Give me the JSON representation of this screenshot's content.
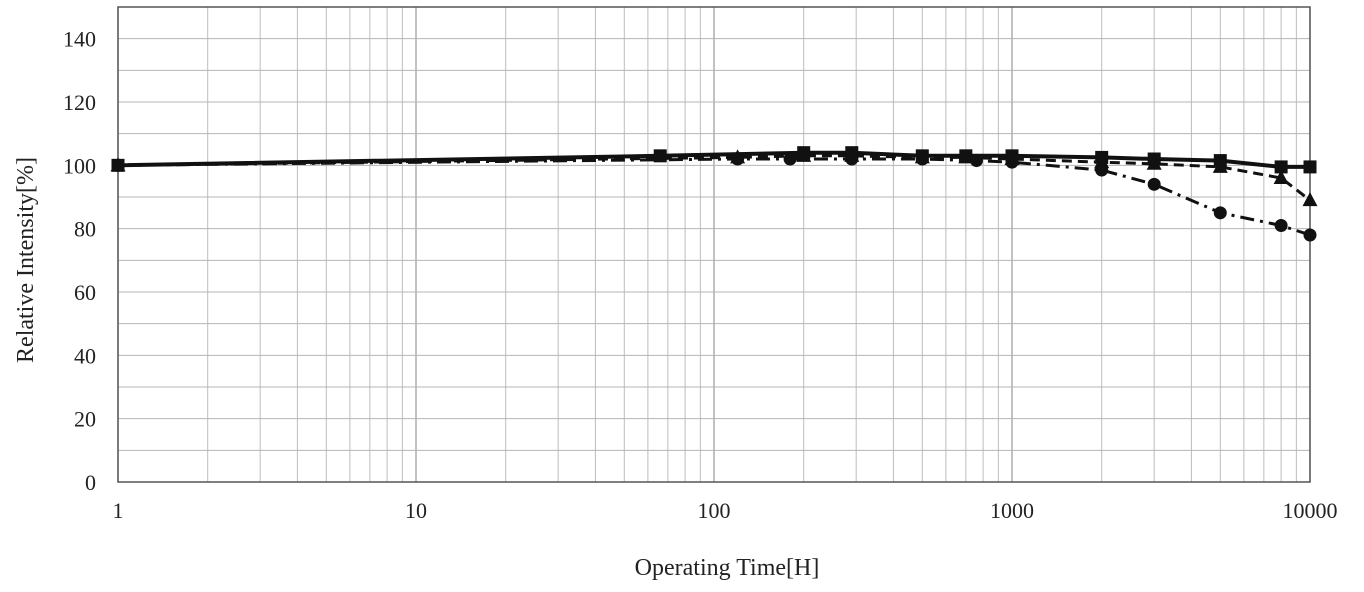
{
  "chart_data": {
    "type": "line",
    "title": "",
    "xlabel": "Operating Time[H]",
    "ylabel": "Relative Intensity[%]",
    "x_scale": "log",
    "xlim": [
      1,
      10000
    ],
    "ylim": [
      0,
      150
    ],
    "x_ticks": [
      1,
      10,
      100,
      1000,
      10000
    ],
    "x_tick_labels": [
      "1",
      "10",
      "100",
      "1000",
      "10000"
    ],
    "y_ticks": [
      0,
      20,
      40,
      60,
      80,
      100,
      120,
      140
    ],
    "y_tick_labels": [
      "0",
      "20",
      "40",
      "60",
      "80",
      "100",
      "120",
      "140"
    ],
    "grid": true,
    "legend": "none",
    "series": [
      {
        "marker": "square",
        "line_style": "solid",
        "color": "#111111",
        "x": [
          1,
          66,
          200,
          290,
          500,
          700,
          1000,
          2000,
          3000,
          5000,
          8000,
          10000
        ],
        "y": [
          100,
          103,
          104,
          104,
          103,
          103,
          103,
          102.5,
          102,
          101.5,
          99.5,
          99.5
        ]
      },
      {
        "marker": "triangle",
        "line_style": "dashed",
        "color": "#111111",
        "x": [
          1,
          120,
          200,
          290,
          500,
          700,
          1000,
          2000,
          3000,
          5000,
          8000,
          10000
        ],
        "y": [
          100,
          102.5,
          103,
          103,
          102.5,
          102.5,
          102,
          101,
          100.5,
          99.5,
          96,
          89
        ]
      },
      {
        "marker": "circle",
        "line_style": "dash-dot",
        "color": "#111111",
        "x": [
          1,
          120,
          180,
          290,
          500,
          760,
          1000,
          2000,
          3000,
          5000,
          8000,
          10000
        ],
        "y": [
          100,
          102,
          102,
          102,
          102,
          101.5,
          101,
          98.5,
          94,
          85,
          81,
          78
        ]
      }
    ]
  }
}
